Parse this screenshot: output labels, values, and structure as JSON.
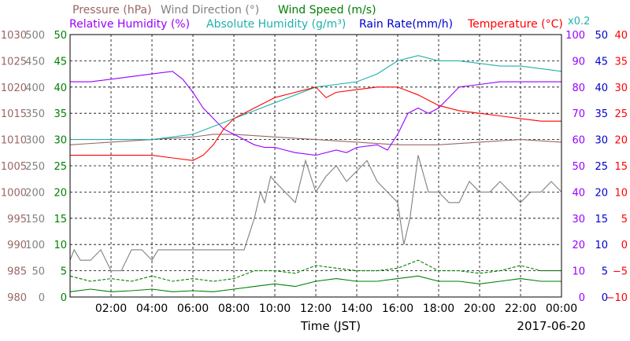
{
  "legend": {
    "row1": [
      {
        "text": "Pressure (hPa)",
        "color": "#996666"
      },
      {
        "text": "Wind Direction (°)",
        "color": "#808080"
      },
      {
        "text": "Wind Speed (m/s)",
        "color": "#008000"
      }
    ],
    "row2": [
      {
        "text": "Relative Humidity (%)",
        "color": "#9900ff"
      },
      {
        "text": "Absolute Humidity (g/m³)",
        "color": "#20b2aa"
      },
      {
        "text": "x0.2",
        "color": "#20b2aa"
      },
      {
        "text": "Rain Rate(mm/h)",
        "color": "#0000cc"
      },
      {
        "text": "Temperature (°C)",
        "color": "#ff0000"
      }
    ]
  },
  "xlabel": "Time (JST)",
  "date": "2017-06-20",
  "chart_data": {
    "type": "line",
    "xlim": [
      "00:00",
      "24:00"
    ],
    "x_ticks": [
      "02:00",
      "04:00",
      "06:00",
      "08:00",
      "10:00",
      "12:00",
      "14:00",
      "16:00",
      "18:00",
      "20:00",
      "22:00",
      "00:00"
    ],
    "grid": true,
    "axes": {
      "pressure": {
        "ticks": [
          "1030",
          "1025",
          "1020",
          "1015",
          "1010",
          "1005",
          "1000",
          "995",
          "990",
          "985",
          "980"
        ],
        "range": [
          980,
          1030
        ],
        "color": "#996666"
      },
      "wind_direction": {
        "ticks": [
          "500",
          "450",
          "400",
          "350",
          "300",
          "250",
          "200",
          "150",
          "100",
          "50",
          "0"
        ],
        "range": [
          0,
          500
        ],
        "color": "#808080"
      },
      "wind_speed": {
        "ticks": [
          "50",
          "45",
          "40",
          "35",
          "30",
          "25",
          "20",
          "15",
          "10",
          "5",
          "0"
        ],
        "range": [
          0,
          50
        ],
        "color": "#008000"
      },
      "relative_humidity": {
        "ticks": [
          "100",
          "90",
          "80",
          "70",
          "60",
          "50",
          "40",
          "30",
          "20",
          "10",
          "0"
        ],
        "range": [
          0,
          100
        ],
        "color": "#9900ff"
      },
      "rain_rate": {
        "ticks": [
          "50",
          "45",
          "40",
          "35",
          "30",
          "25",
          "20",
          "15",
          "10",
          "5",
          "0"
        ],
        "range": [
          0,
          50
        ],
        "color": "#0000cc"
      },
      "temperature": {
        "ticks": [
          "40",
          "35",
          "30",
          "25",
          "20",
          "15",
          "10",
          "5",
          "0",
          "−5",
          "−10"
        ],
        "range": [
          -10,
          40
        ],
        "color": "#ff0000"
      }
    },
    "series": [
      {
        "name": "Pressure (hPa)",
        "axis": "pressure",
        "color": "#996666",
        "x": [
          0,
          2,
          4,
          6,
          7,
          8,
          10,
          12,
          14,
          16,
          18,
          20,
          22,
          24
        ],
        "y": [
          1009,
          1009.5,
          1010,
          1010.5,
          1011,
          1011,
          1010.5,
          1010,
          1009.5,
          1009,
          1009,
          1009.5,
          1010,
          1009.5
        ]
      },
      {
        "name": "Wind Direction (°)",
        "axis": "wind_direction",
        "color": "#808080",
        "x": [
          0,
          0.2,
          0.5,
          1,
          1.5,
          2,
          2.5,
          3,
          3.5,
          4,
          4.3,
          4.8,
          5.5,
          6,
          7,
          8,
          8.5,
          9,
          9.3,
          9.5,
          9.8,
          10,
          10.5,
          11,
          11.5,
          12,
          12.5,
          13,
          13.5,
          14,
          14.5,
          15,
          15.5,
          16,
          16.3,
          16.6,
          17,
          17.5,
          18,
          18.5,
          19,
          19.5,
          20,
          20.5,
          21,
          21.5,
          22,
          22.5,
          23,
          23.5,
          24
        ],
        "y": [
          70,
          90,
          70,
          70,
          90,
          50,
          50,
          90,
          90,
          70,
          90,
          90,
          90,
          90,
          90,
          90,
          90,
          150,
          200,
          180,
          230,
          220,
          200,
          180,
          260,
          200,
          230,
          250,
          220,
          240,
          260,
          220,
          200,
          180,
          100,
          150,
          270,
          200,
          200,
          180,
          180,
          220,
          200,
          200,
          220,
          200,
          180,
          200,
          200,
          220,
          200
        ]
      },
      {
        "name": "Wind Speed (m/s)",
        "axis": "wind_speed",
        "color": "#008000",
        "x": [
          0,
          1,
          2,
          3,
          4,
          5,
          6,
          7,
          8,
          9,
          10,
          11,
          12,
          13,
          14,
          15,
          16,
          17,
          18,
          19,
          20,
          21,
          22,
          23,
          24
        ],
        "y": [
          1,
          1.5,
          1,
          1.2,
          1.5,
          1,
          1.2,
          1,
          1.5,
          2,
          2.5,
          2,
          3,
          3.5,
          3,
          3,
          3.5,
          4,
          3,
          3,
          2.5,
          3,
          3.5,
          3,
          3
        ]
      },
      {
        "name": "Wind Speed (m/s)",
        "axis": "wind_speed",
        "color": "#008000",
        "dashed": true,
        "x": [
          0,
          1,
          2,
          3,
          4,
          5,
          6,
          7,
          8,
          9,
          10,
          11,
          12,
          13,
          14,
          15,
          16,
          17,
          18,
          19,
          20,
          21,
          22,
          23,
          24
        ],
        "y": [
          4,
          3,
          3.5,
          3,
          4,
          3,
          3.5,
          3,
          3.5,
          5,
          5,
          4.5,
          6,
          5.5,
          5,
          5,
          5.5,
          7,
          5,
          5,
          4.5,
          5,
          6,
          5,
          5
        ]
      },
      {
        "name": "Relative Humidity (%)",
        "axis": "relative_humidity",
        "color": "#9900ff",
        "x": [
          0,
          1,
          2,
          3,
          4,
          5,
          5.5,
          6,
          6.5,
          7,
          7.5,
          8,
          8.5,
          9,
          9.5,
          10,
          10.5,
          11,
          12,
          13,
          13.5,
          14,
          15,
          15.5,
          16,
          16.5,
          17,
          17.5,
          18,
          18.5,
          19,
          20,
          21,
          22,
          23,
          24
        ],
        "y": [
          82,
          82,
          83,
          84,
          85,
          86,
          83,
          78,
          72,
          68,
          64,
          62,
          60,
          58,
          57,
          57,
          56,
          55,
          54,
          56,
          55,
          57,
          58,
          56,
          62,
          70,
          72,
          70,
          72,
          76,
          80,
          81,
          82,
          82,
          82,
          82
        ]
      },
      {
        "name": "Absolute Humidity (g/m³)",
        "axis": "wind_speed",
        "color": "#20b2aa",
        "x": [
          0,
          1,
          2,
          3,
          4,
          5,
          6,
          7,
          8,
          9,
          10,
          11,
          12,
          13,
          14,
          15,
          16,
          17,
          18,
          19,
          20,
          21,
          22,
          23,
          24
        ],
        "y": [
          30,
          30,
          30,
          30,
          30,
          30.5,
          31,
          32.5,
          34,
          35.5,
          37,
          38.5,
          40,
          40.5,
          41,
          42.5,
          45,
          46,
          45,
          45,
          44.5,
          44,
          44,
          43.5,
          43
        ]
      },
      {
        "name": "Rain Rate(mm/h)",
        "axis": "rain_rate",
        "color": "#0000cc",
        "x": [
          0,
          24
        ],
        "y": [
          0,
          0
        ]
      },
      {
        "name": "Temperature (°C)",
        "axis": "temperature",
        "color": "#ff0000",
        "x": [
          0,
          1,
          2,
          3,
          4,
          5,
          6,
          6.5,
          7,
          7.5,
          8,
          9,
          10,
          11,
          12,
          12.5,
          13,
          14,
          15,
          16,
          17,
          18,
          19,
          20,
          21,
          22,
          23,
          24
        ],
        "y": [
          17,
          17,
          17,
          17,
          17,
          16.5,
          16,
          17,
          19,
          22,
          24,
          26,
          28,
          29,
          30,
          28,
          29,
          29.5,
          30,
          30,
          28.5,
          26.5,
          25.5,
          25,
          24.5,
          24,
          23.5,
          23.5
        ]
      }
    ]
  }
}
